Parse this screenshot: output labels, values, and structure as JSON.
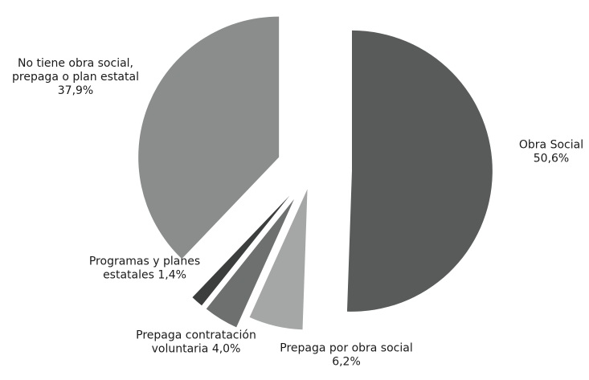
{
  "chart_data": {
    "type": "pie",
    "title": "",
    "unit": "%",
    "exploded": true,
    "slices": [
      {
        "label": "Obra Social",
        "value": 50.6,
        "value_text": "50,6%",
        "color": "#595b5b"
      },
      {
        "label": "Prepaga por obra social",
        "value": 6.2,
        "value_text": "6,2%",
        "color": "#a5a7a7"
      },
      {
        "label": "Prepaga contratación voluntaria",
        "value": 4.0,
        "value_text": "4,0%",
        "color": "#6e7070"
      },
      {
        "label": "Programas y planes estatales",
        "value": 1.4,
        "value_text": "1,4%",
        "color": "#3c3e3e"
      },
      {
        "label": "No tiene obra social, prepaga o plan estatal",
        "value": 37.9,
        "value_text": "37,9%",
        "color": "#8b8d8d"
      }
    ],
    "label_lines": [
      [
        "Obra Social",
        "50,6%"
      ],
      [
        "Prepaga por obra social",
        "6,2%"
      ],
      [
        "Prepaga contratación",
        "voluntaria 4,0%"
      ],
      [
        "Programas y planes",
        "estatales 1,4%"
      ],
      [
        "No tiene obra social,",
        "prepaga o plan estatal",
        "37,9%"
      ]
    ]
  }
}
